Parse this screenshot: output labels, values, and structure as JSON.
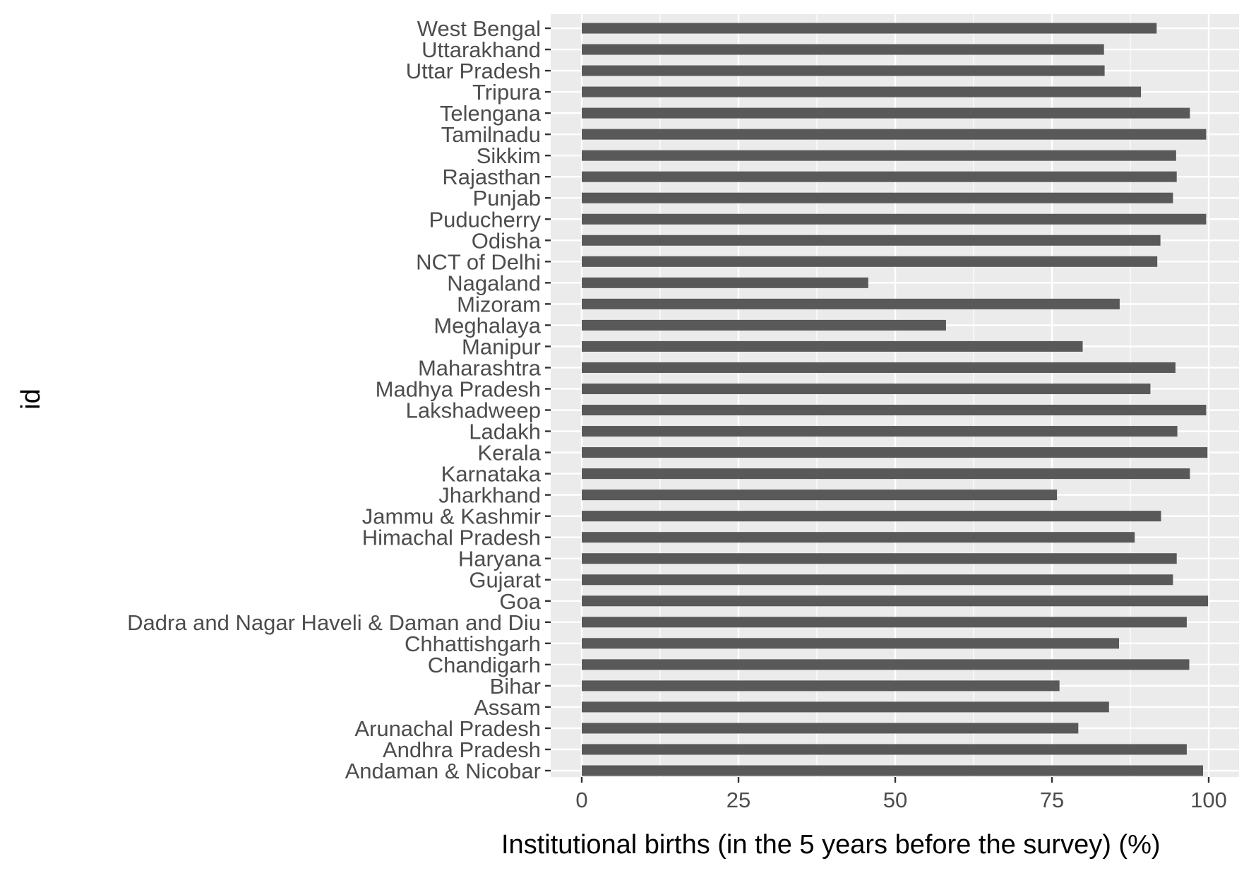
{
  "chart_data": {
    "type": "bar",
    "orientation": "horizontal",
    "xlabel": "Institutional births (in the 5 years before the survey) (%)",
    "ylabel": "id",
    "xlim": [
      -5,
      104
    ],
    "x_ticks": [
      0,
      25,
      50,
      75,
      100
    ],
    "grid": true,
    "colors": {
      "bar": "#595959",
      "panel": "#ebebeb",
      "grid": "#ffffff",
      "text": "#4d4d4d"
    },
    "categories": [
      "Andaman & Nicobar",
      "Andhra Pradesh",
      "Arunachal Pradesh",
      "Assam",
      "Bihar",
      "Chandigarh",
      "Chhattishgarh",
      "Dadra and Nagar Haveli & Daman and Diu",
      "Goa",
      "Gujarat",
      "Haryana",
      "Himachal Pradesh",
      "Jammu & Kashmir",
      "Jharkhand",
      "Karnataka",
      "Kerala",
      "Ladakh",
      "Lakshadweep",
      "Madhya Pradesh",
      "Maharashtra",
      "Manipur",
      "Meghalaya",
      "Mizoram",
      "Nagaland",
      "NCT of Delhi",
      "Odisha",
      "Puducherry",
      "Punjab",
      "Rajasthan",
      "Sikkim",
      "Tamilnadu",
      "Telengana",
      "Tripura",
      "Uttar Pradesh",
      "Uttarakhand",
      "West Bengal"
    ],
    "values": [
      99.1,
      96.5,
      79.2,
      84.1,
      76.2,
      96.9,
      85.7,
      96.5,
      99.9,
      94.3,
      94.9,
      88.2,
      92.4,
      75.8,
      97.0,
      99.8,
      95.0,
      99.6,
      90.7,
      94.7,
      79.9,
      58.1,
      85.8,
      45.7,
      91.8,
      92.3,
      99.6,
      94.3,
      94.9,
      94.8,
      99.6,
      97.0,
      89.2,
      83.4,
      83.3,
      91.7
    ]
  }
}
